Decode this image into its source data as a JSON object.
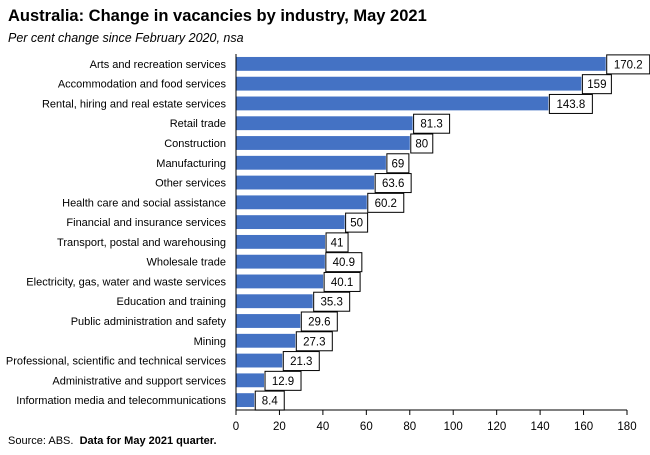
{
  "header": {
    "title": "Australia: Change in vacancies by industry, May 2021",
    "subtitle": "Per cent change since February 2020, nsa"
  },
  "footer": {
    "source_prefix": "Source: ABS.",
    "source_note": "Data for May 2021 quarter."
  },
  "colors": {
    "bar": "#4472C4",
    "axis": "#000000",
    "label_box_border": "#000000"
  },
  "chart_data": {
    "type": "bar",
    "orientation": "horizontal",
    "title": "Australia: Change in vacancies by industry, May 2021",
    "subtitle": "Per cent change since February 2020, nsa",
    "categories": [
      "Arts and recreation services",
      "Accommodation and food services",
      "Rental, hiring and real estate services",
      "Retail trade",
      "Construction",
      "Manufacturing",
      "Other services",
      "Health care and social assistance",
      "Financial and insurance services",
      "Transport, postal and warehousing",
      "Wholesale trade",
      "Electricity, gas, water and waste services",
      "Education and training",
      "Public administration and safety",
      "Mining",
      "Professional, scientific and technical services",
      "Administrative and support services",
      "Information media and telecommunications"
    ],
    "values": [
      170.2,
      159,
      143.8,
      81.3,
      80,
      69,
      63.6,
      60.2,
      50,
      41,
      40.9,
      40.1,
      35.3,
      29.6,
      27.3,
      21.3,
      12.9,
      8.4
    ],
    "value_labels": [
      "170.2",
      "159",
      "143.8",
      "81.3",
      "80",
      "69",
      "63.6",
      "60.2",
      "50",
      "41",
      "40.9",
      "40.1",
      "35.3",
      "29.6",
      "27.3",
      "21.3",
      "12.9",
      "8.4"
    ],
    "xlim": [
      0,
      180
    ],
    "xticks": [
      0,
      20,
      40,
      60,
      80,
      100,
      120,
      140,
      160,
      180
    ],
    "grid": false,
    "legend": "none"
  }
}
